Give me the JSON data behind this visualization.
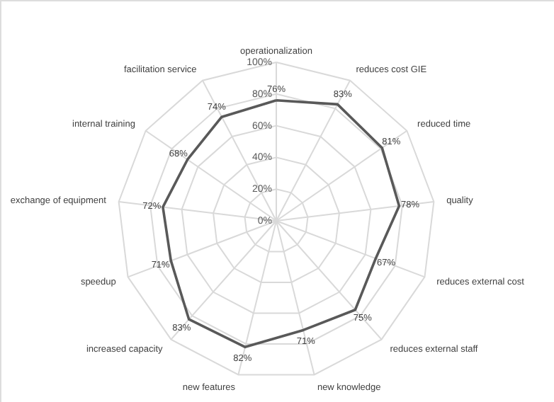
{
  "chart_data": {
    "type": "radar",
    "categories": [
      "operationalization",
      "reduces cost GIE",
      "reduced time",
      "quality",
      "reduces external cost",
      "reduces external staff",
      "new knowledge",
      "new features",
      "increased capacity",
      "speedup",
      "exchange of equipment",
      "internal training",
      "facilitation service"
    ],
    "series": [
      {
        "color": "#595959",
        "values": [
          76,
          83,
          81,
          78,
          67,
          75,
          71,
          82,
          83,
          71,
          72,
          68,
          74
        ],
        "value_labels": [
          "76%",
          "83%",
          "81%",
          "78%",
          "67%",
          "75%",
          "71%",
          "82%",
          "83%",
          "71%",
          "72%",
          "68%",
          "74%"
        ]
      }
    ],
    "ylim": [
      0,
      100
    ],
    "yticks": [
      {
        "value": 0,
        "label": "0%"
      },
      {
        "value": 20,
        "label": "20%"
      },
      {
        "value": 40,
        "label": "40%"
      },
      {
        "value": 60,
        "label": "60%"
      },
      {
        "value": 80,
        "label": "80%"
      },
      {
        "value": 100,
        "label": "100%"
      }
    ],
    "grid": true
  }
}
